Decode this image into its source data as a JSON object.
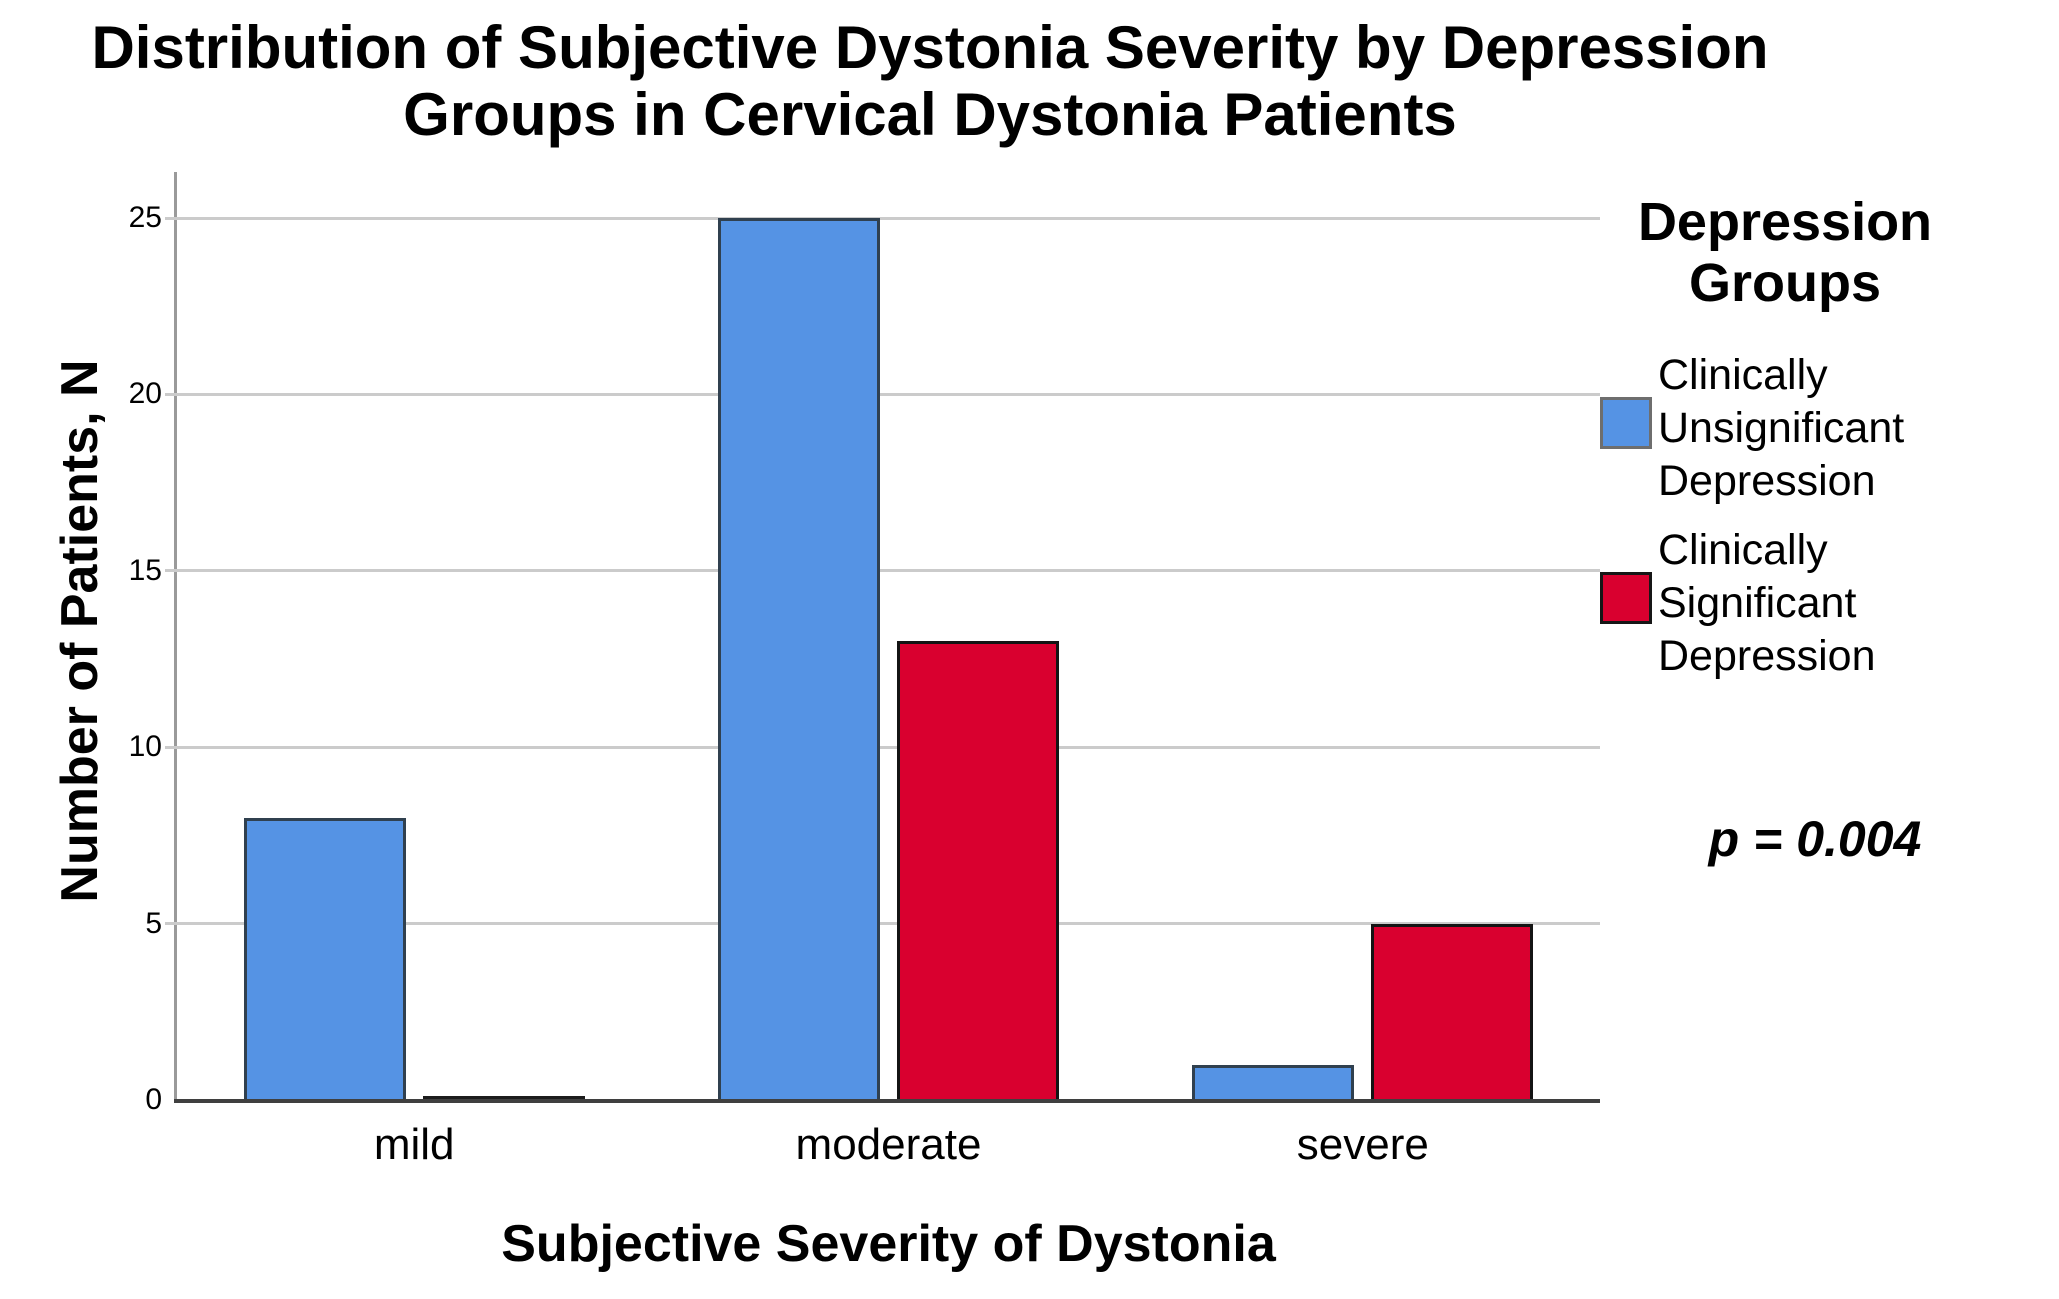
{
  "title": {
    "line1": "Distribution of Subjective Dystonia Severity by Depression",
    "line2": "Groups in Cervical Dystonia Patients"
  },
  "y_axis": {
    "label": "Number of Patients, N",
    "tick_labels": [
      "0",
      "5",
      "10",
      "15",
      "20",
      "25"
    ]
  },
  "x_axis": {
    "label": "Subjective Severity of Dystonia",
    "categories": [
      "mild",
      "moderate",
      "severe"
    ]
  },
  "legend": {
    "title_line1": "Depression",
    "title_line2": "Groups",
    "items": [
      {
        "label_lines": [
          "Clinically",
          "Unsignificant",
          "Depression"
        ],
        "color": "#5593E4",
        "border_color": "#6e6e6e"
      },
      {
        "label_lines": [
          "Clinically",
          "Significant",
          "Depression"
        ],
        "color": "#D9002F",
        "border_color": "#161616"
      }
    ]
  },
  "annotation": {
    "p_value": "p = 0.004"
  },
  "chart_data": {
    "type": "bar",
    "categories": [
      "mild",
      "moderate",
      "severe"
    ],
    "series": [
      {
        "name": "Clinically Unsignificant Depression",
        "color": "#5593E4",
        "border_color": "#30404f",
        "values": [
          8,
          25,
          1
        ]
      },
      {
        "name": "Clinically Significant Depression",
        "color": "#D9002F",
        "border_color": "#141414",
        "values": [
          0,
          13,
          5
        ]
      }
    ],
    "title": "Distribution of Subjective Dystonia Severity by Depression Groups in Cervical Dystonia Patients",
    "xlabel": "Subjective Severity of Dystonia",
    "ylabel": "Number of Patients, N",
    "ylim": [
      0,
      26.3
    ],
    "yticks": [
      0,
      5,
      10,
      15,
      20,
      25
    ],
    "grid": true,
    "gridline_color": "#cbcbcb",
    "legend_title": "Depression Groups",
    "legend_position": "right",
    "annotation": "p = 0.004"
  }
}
